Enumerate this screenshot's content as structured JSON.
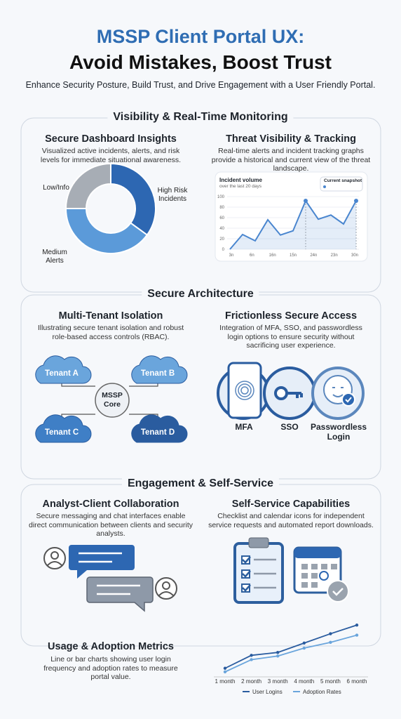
{
  "header": {
    "title_line1": "MSSP Client Portal UX:",
    "title_line2": "Avoid Mistakes, Boost Trust",
    "subtitle": "Enhance Security Posture, Build Trust, and Drive Engagement with a User Friendly Portal."
  },
  "sections": [
    {
      "title": "Visibility & Real-Time Monitoring",
      "panels": [
        {
          "title": "Secure Dashboard Insights",
          "text": "Visualized active incidents, alerts, and risk levels for immediate situational awareness."
        },
        {
          "title": "Threat Visibility & Tracking",
          "text": "Real-time alerts and incident tracking graphs provide a historical and current view of the threat landscape."
        }
      ]
    },
    {
      "title": "Secure Architecture",
      "panels": [
        {
          "title": "Multi-Tenant Isolation",
          "text": "Illustrating secure tenant isolation and robust role-based access controls (RBAC)."
        },
        {
          "title": "Frictionless Secure Access",
          "text": "Integration of MFA, SSO, and passwordless login options to ensure security without sacrificing user experience."
        }
      ]
    },
    {
      "title": "Engagement & Self-Service",
      "panels": [
        {
          "title": "Analyst-Client Collaboration",
          "text": "Secure messaging and chat interfaces enable direct communication between clients and security analysts."
        },
        {
          "title": "Self-Service Capabilities",
          "text": "Checklist and calendar icons for independent service requests and automated report downloads."
        },
        {
          "title": "Usage & Adoption Metrics",
          "text": "Line or bar charts showing user login frequency and adoption rates to measure portal value."
        }
      ]
    }
  ],
  "donut": {
    "type": "pie",
    "categories": [
      "High Risk Incidents",
      "Medium Alerts",
      "Low/Info"
    ],
    "values": [
      35,
      40,
      25
    ],
    "colors": [
      "#2d67b2",
      "#5b9ad9",
      "#a7adb5"
    ]
  },
  "threat_chart": {
    "type": "line",
    "title": "Incident volume",
    "subtitle": "over the last 20 days",
    "legend": "Current snapshot",
    "x_tick_labels": [
      "3n",
      "6n",
      "16n",
      "15n",
      "24n",
      "23n",
      "30n"
    ],
    "values": [
      0,
      28,
      16,
      56,
      27,
      35,
      92,
      57,
      65,
      48,
      92
    ],
    "ylim": [
      0,
      100
    ],
    "yticks": [
      0,
      20,
      40,
      60,
      80,
      100
    ],
    "color": "#4a86cf",
    "grid": true
  },
  "tenants": {
    "nodes": [
      "Tenant A",
      "Tenant B",
      "Tenant C",
      "Tenant D"
    ],
    "core": "MSSP Core"
  },
  "access": [
    "MFA",
    "SSO",
    "Passwordless Login"
  ],
  "usage_chart": {
    "type": "line",
    "categories": [
      "1 month",
      "2 month",
      "3 month",
      "4 month",
      "5 month",
      "6 month"
    ],
    "series": [
      {
        "name": "User Logins",
        "color": "#2a5c9f",
        "values": [
          10,
          28,
          32,
          45,
          58,
          70
        ]
      },
      {
        "name": "Adoption Rates",
        "color": "#6aa5dc",
        "values": [
          5,
          22,
          27,
          38,
          46,
          56
        ]
      }
    ],
    "ylim": [
      0,
      80
    ]
  }
}
